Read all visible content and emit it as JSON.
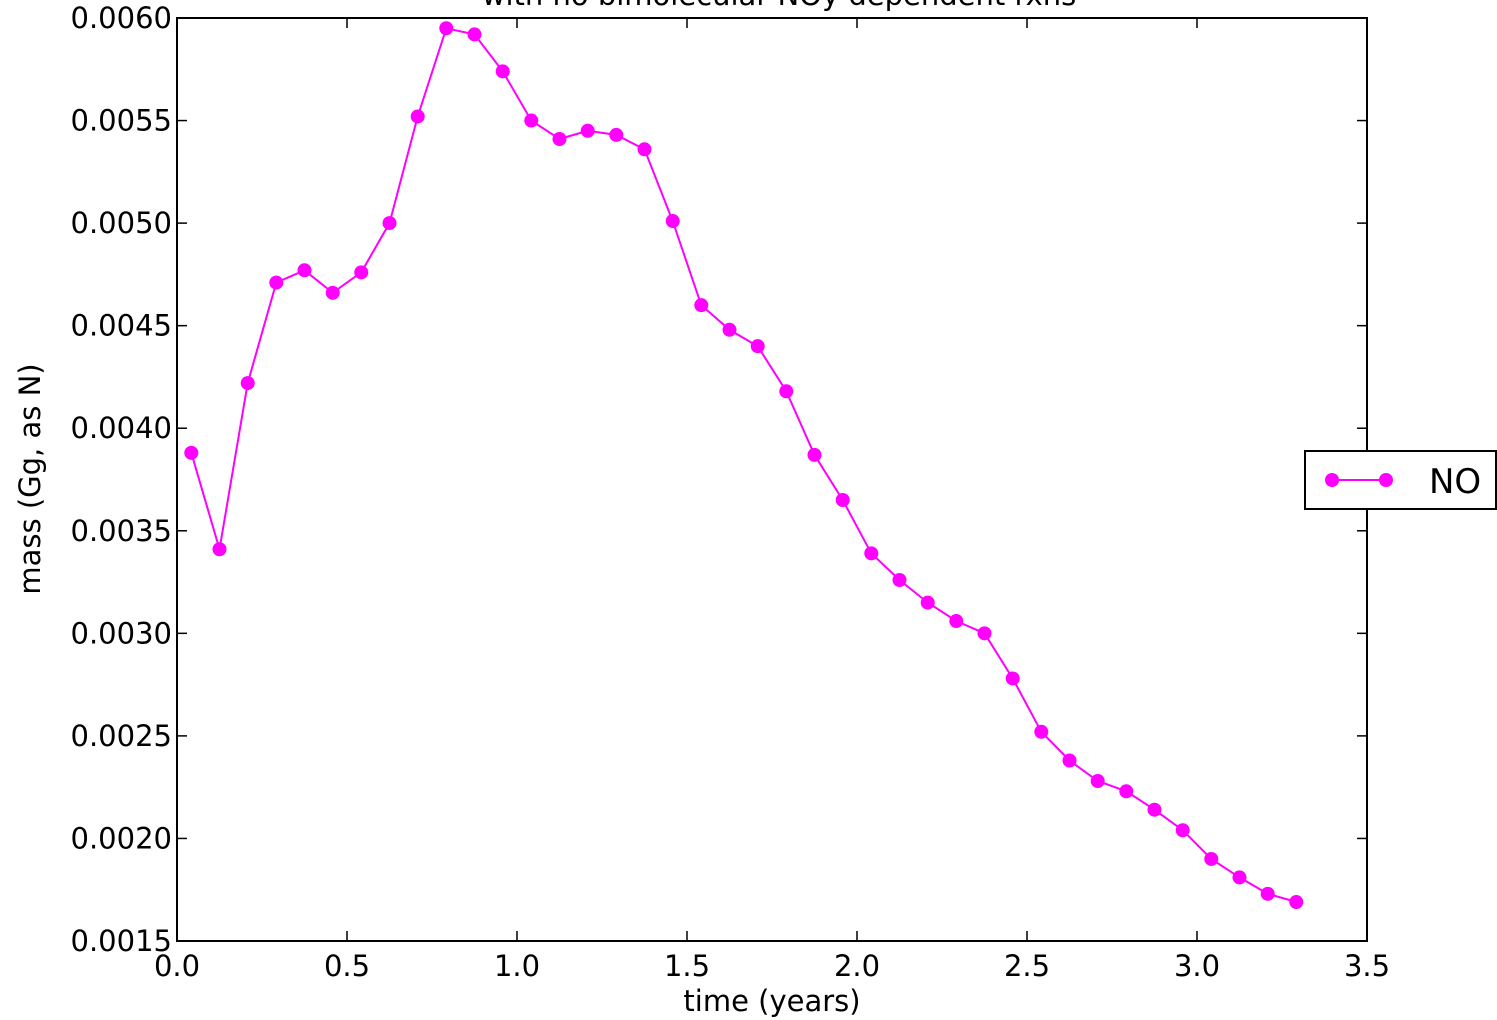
{
  "chart_data": {
    "type": "line",
    "title": "with no bimolecular NOy dependent rxns",
    "xlabel": "time (years)",
    "ylabel": "mass (Gg, as N)",
    "xlim": [
      0.0,
      3.5
    ],
    "ylim": [
      0.0015,
      0.006
    ],
    "x_ticks": [
      "0.0",
      "0.5",
      "1.0",
      "1.5",
      "2.0",
      "2.5",
      "3.0",
      "3.5"
    ],
    "y_ticks": [
      "0.0015",
      "0.0020",
      "0.0025",
      "0.0030",
      "0.0035",
      "0.0040",
      "0.0045",
      "0.0050",
      "0.0055",
      "0.0060"
    ],
    "grid": false,
    "legend_position": "center-right outside",
    "series": [
      {
        "name": "NO",
        "color": "#ff00ff",
        "marker": "circle",
        "x": [
          0.042,
          0.125,
          0.208,
          0.292,
          0.375,
          0.458,
          0.542,
          0.625,
          0.708,
          0.792,
          0.875,
          0.958,
          1.042,
          1.125,
          1.208,
          1.292,
          1.375,
          1.458,
          1.542,
          1.625,
          1.708,
          1.792,
          1.875,
          1.958,
          2.042,
          2.125,
          2.208,
          2.292,
          2.375,
          2.458,
          2.542,
          2.625,
          2.708,
          2.792,
          2.875,
          2.958,
          3.042,
          3.125,
          3.208,
          3.292
        ],
        "y": [
          0.00388,
          0.00341,
          0.00422,
          0.00471,
          0.00477,
          0.00466,
          0.00476,
          0.005,
          0.00552,
          0.00595,
          0.00592,
          0.00574,
          0.0055,
          0.00541,
          0.00545,
          0.00543,
          0.00536,
          0.00501,
          0.0046,
          0.00448,
          0.0044,
          0.00418,
          0.00387,
          0.00365,
          0.00339,
          0.00326,
          0.00315,
          0.00306,
          0.003,
          0.00278,
          0.00252,
          0.00238,
          0.00228,
          0.00223,
          0.00214,
          0.00204,
          0.0019,
          0.00181,
          0.00173,
          0.00169
        ]
      }
    ]
  }
}
